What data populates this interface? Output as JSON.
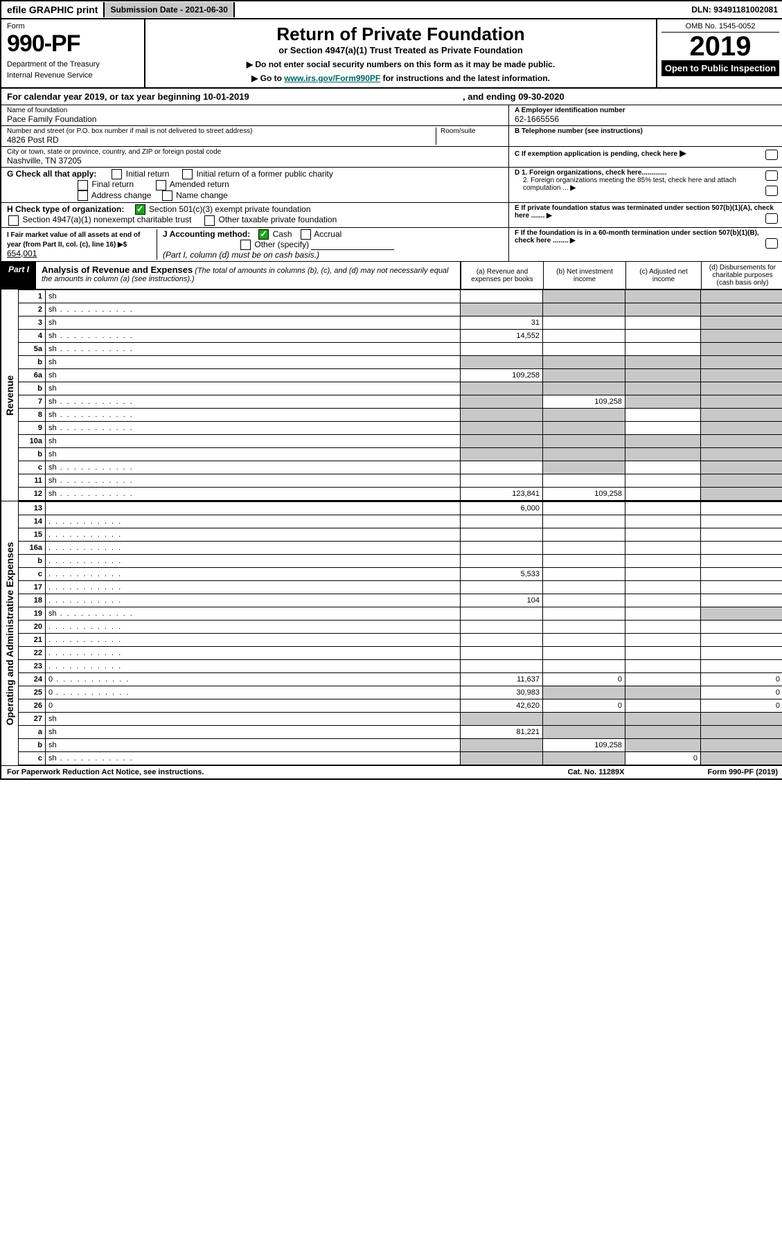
{
  "topbar": {
    "efile": "efile GRAPHIC print",
    "subdate_label": "Submission Date - 2021-06-30",
    "dln": "DLN: 93491181002081"
  },
  "header": {
    "form_word": "Form",
    "form_num": "990-PF",
    "dept": "Department of the Treasury",
    "irs": "Internal Revenue Service",
    "title": "Return of Private Foundation",
    "sub": "or Section 4947(a)(1) Trust Treated as Private Foundation",
    "inst1": "▶ Do not enter social security numbers on this form as it may be made public.",
    "inst2": "▶ Go to ",
    "inst2_link": "www.irs.gov/Form990PF",
    "inst2b": " for instructions and the latest information.",
    "omb": "OMB No. 1545-0052",
    "year": "2019",
    "badge": "Open to Public Inspection"
  },
  "cal": {
    "a": "For calendar year 2019, or tax year beginning 10-01-2019",
    "b": ", and ending 09-30-2020"
  },
  "id": {
    "name_label": "Name of foundation",
    "name": "Pace Family Foundation",
    "ein_label": "A Employer identification number",
    "ein": "62-1665556",
    "addr_label": "Number and street (or P.O. box number if mail is not delivered to street address)",
    "room": "Room/suite",
    "addr": "4826 Post RD",
    "tel_label": "B Telephone number (see instructions)",
    "city_label": "City or town, state or province, country, and ZIP or foreign postal code",
    "city": "Nashville, TN  37205",
    "c": "C If exemption application is pending, check here",
    "g": "G Check all that apply:",
    "g1": "Initial return",
    "g2": "Initial return of a former public charity",
    "g3": "Final return",
    "g4": "Amended return",
    "g5": "Address change",
    "g6": "Name change",
    "d1": "D 1. Foreign organizations, check here.............",
    "d2": "2. Foreign organizations meeting the 85% test, check here and attach computation ...",
    "h": "H Check type of organization:",
    "h1": "Section 501(c)(3) exempt private foundation",
    "h2": "Section 4947(a)(1) nonexempt charitable trust",
    "h3": "Other taxable private foundation",
    "e": "E  If private foundation status was terminated under section 507(b)(1)(A), check here .......",
    "i": "I Fair market value of all assets at end of year (from Part II, col. (c), line 16) ▶$",
    "ival": "654,001",
    "j": "J Accounting method:",
    "j1": "Cash",
    "j2": "Accrual",
    "j3": "Other (specify)",
    "jnote": "(Part I, column (d) must be on cash basis.)",
    "f": "F  If the foundation is in a 60-month termination under section 507(b)(1)(B), check here ........"
  },
  "partI": {
    "label": "Part I",
    "title": "Analysis of Revenue and Expenses",
    "note": "(The total of amounts in columns (b), (c), and (d) may not necessarily equal the amounts in column (a) (see instructions).)",
    "ca": "(a)   Revenue and expenses per books",
    "cb": "(b)  Net investment income",
    "cc": "(c)  Adjusted net income",
    "cd": "(d)  Disbursements for charitable purposes (cash basis only)"
  },
  "side": {
    "rev": "Revenue",
    "exp": "Operating and Administrative Expenses"
  },
  "rows": [
    {
      "n": "1",
      "d": "sh",
      "a": "",
      "b": "sh",
      "c": "sh"
    },
    {
      "n": "2",
      "d": "sh",
      "dots": true,
      "a": "sh",
      "b": "sh",
      "c": "sh"
    },
    {
      "n": "3",
      "d": "sh",
      "a": "31",
      "b": "",
      "c": ""
    },
    {
      "n": "4",
      "d": "sh",
      "dots": true,
      "a": "14,552",
      "b": "",
      "c": ""
    },
    {
      "n": "5a",
      "d": "sh",
      "dots": true,
      "a": "",
      "b": "",
      "c": ""
    },
    {
      "n": "b",
      "d": "sh",
      "a": "sh",
      "b": "sh",
      "c": "sh"
    },
    {
      "n": "6a",
      "d": "sh",
      "a": "109,258",
      "b": "sh",
      "c": "sh"
    },
    {
      "n": "b",
      "d": "sh",
      "a": "sh",
      "b": "sh",
      "c": "sh"
    },
    {
      "n": "7",
      "d": "sh",
      "dots": true,
      "a": "sh",
      "b": "109,258",
      "c": "sh"
    },
    {
      "n": "8",
      "d": "sh",
      "dots": true,
      "a": "sh",
      "b": "sh",
      "c": ""
    },
    {
      "n": "9",
      "d": "sh",
      "dots": true,
      "a": "sh",
      "b": "sh",
      "c": ""
    },
    {
      "n": "10a",
      "d": "sh",
      "a": "sh",
      "b": "sh",
      "c": "sh"
    },
    {
      "n": "b",
      "d": "sh",
      "a": "sh",
      "b": "sh",
      "c": "sh"
    },
    {
      "n": "c",
      "d": "sh",
      "dots": true,
      "a": "",
      "b": "sh",
      "c": ""
    },
    {
      "n": "11",
      "d": "sh",
      "dots": true,
      "a": "",
      "b": "",
      "c": ""
    },
    {
      "n": "12",
      "d": "sh",
      "dots": true,
      "a": "123,841",
      "b": "109,258",
      "c": ""
    }
  ],
  "rows2": [
    {
      "n": "13",
      "d": "",
      "a": "6,000",
      "b": "",
      "c": ""
    },
    {
      "n": "14",
      "d": "",
      "dots": true,
      "a": "",
      "b": "",
      "c": ""
    },
    {
      "n": "15",
      "d": "",
      "dots": true,
      "a": "",
      "b": "",
      "c": ""
    },
    {
      "n": "16a",
      "d": "",
      "dots": true,
      "a": "",
      "b": "",
      "c": ""
    },
    {
      "n": "b",
      "d": "",
      "dots": true,
      "a": "",
      "b": "",
      "c": ""
    },
    {
      "n": "c",
      "d": "",
      "dots": true,
      "a": "5,533",
      "b": "",
      "c": ""
    },
    {
      "n": "17",
      "d": "",
      "dots": true,
      "a": "",
      "b": "",
      "c": ""
    },
    {
      "n": "18",
      "d": "",
      "dots": true,
      "a": "104",
      "b": "",
      "c": ""
    },
    {
      "n": "19",
      "d": "sh",
      "dots": true,
      "a": "",
      "b": "",
      "c": ""
    },
    {
      "n": "20",
      "d": "",
      "dots": true,
      "a": "",
      "b": "",
      "c": ""
    },
    {
      "n": "21",
      "d": "",
      "dots": true,
      "a": "",
      "b": "",
      "c": ""
    },
    {
      "n": "22",
      "d": "",
      "dots": true,
      "a": "",
      "b": "",
      "c": ""
    },
    {
      "n": "23",
      "d": "",
      "dots": true,
      "a": "",
      "b": "",
      "c": ""
    },
    {
      "n": "24",
      "d": "0",
      "dots": true,
      "a": "11,637",
      "b": "0",
      "c": ""
    },
    {
      "n": "25",
      "d": "0",
      "dots": true,
      "a": "30,983",
      "b": "sh",
      "c": "sh"
    },
    {
      "n": "26",
      "d": "0",
      "a": "42,620",
      "b": "0",
      "c": ""
    },
    {
      "n": "27",
      "d": "sh",
      "a": "sh",
      "b": "sh",
      "c": "sh"
    },
    {
      "n": "a",
      "d": "sh",
      "a": "81,221",
      "b": "sh",
      "c": "sh"
    },
    {
      "n": "b",
      "d": "sh",
      "a": "sh",
      "b": "109,258",
      "c": "sh"
    },
    {
      "n": "c",
      "d": "sh",
      "dots": true,
      "a": "sh",
      "b": "sh",
      "c": "0"
    }
  ],
  "footer": {
    "l": "For Paperwork Reduction Act Notice, see instructions.",
    "m": "Cat. No. 11289X",
    "r": "Form 990-PF (2019)"
  }
}
